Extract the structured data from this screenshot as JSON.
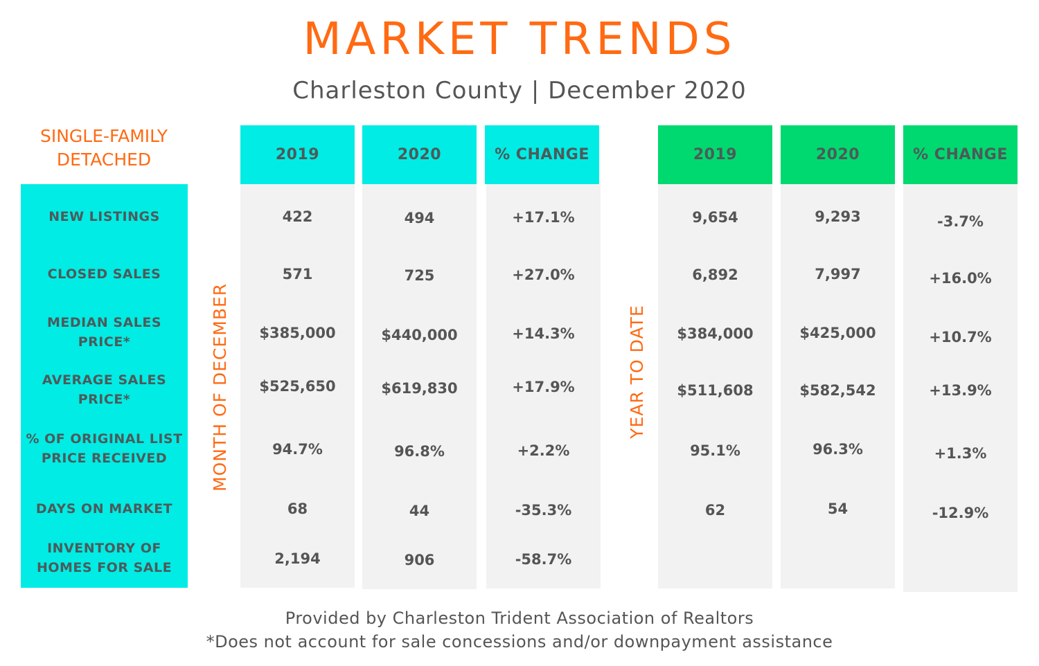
{
  "title": "MARKET TRENDS",
  "subtitle": "Charleston County | December 2020",
  "section_title_line1": "SINGLE-FAMILY",
  "section_title_line2": "DETACHED",
  "month_label": "MONTH OF DECEMBER",
  "ytd_label": "YEAR TO DATE",
  "row_labels": [
    [
      "NEW LISTINGS"
    ],
    [
      "CLOSED SALES"
    ],
    [
      "MEDIAN SALES",
      "PRICE*"
    ],
    [
      "AVERAGE SALES",
      "PRICE*"
    ],
    [
      "% OF ORIGINAL LIST",
      "PRICE RECEIVED"
    ],
    [
      "DAYS ON MARKET"
    ],
    [
      "INVENTORY OF",
      "HOMES FOR SALE"
    ]
  ],
  "month_headers": [
    "2019",
    "2020",
    "% CHANGE"
  ],
  "ytd_headers": [
    "2019",
    "2020",
    "% CHANGE"
  ],
  "month_values": {
    "y2019": [
      "422",
      "571",
      "$385,000",
      "$525,650",
      "94.7%",
      "68",
      "2,194"
    ],
    "y2020": [
      "494",
      "725",
      "$440,000",
      "$619,830",
      "96.8%",
      "44",
      "906"
    ],
    "change": [
      "+17.1%",
      "+27.0%",
      "+14.3%",
      "+17.9%",
      "+2.2%",
      "-35.3%",
      "-58.7%"
    ]
  },
  "ytd_values": {
    "y2019": [
      "9,654",
      "6,892",
      "$384,000",
      "$511,608",
      "95.1%",
      "62",
      ""
    ],
    "y2020": [
      "9,293",
      "7,997",
      "$425,000",
      "$582,542",
      "96.3%",
      "54",
      ""
    ],
    "change": [
      "-3.7%",
      "+16.0%",
      "+10.7%",
      "+13.9%",
      "+1.3%",
      "-12.9%",
      ""
    ]
  },
  "footer_line1": "Provided by Charleston Trident Association of Realtors",
  "footer_line2": "*Does not account for sale concessions and/or downpayment assistance",
  "colors": {
    "accent_orange": "#ff6a13",
    "cyan": "#00ece4",
    "green": "#00d96f",
    "cell_bg": "#f2f2f2",
    "text": "#555555"
  }
}
